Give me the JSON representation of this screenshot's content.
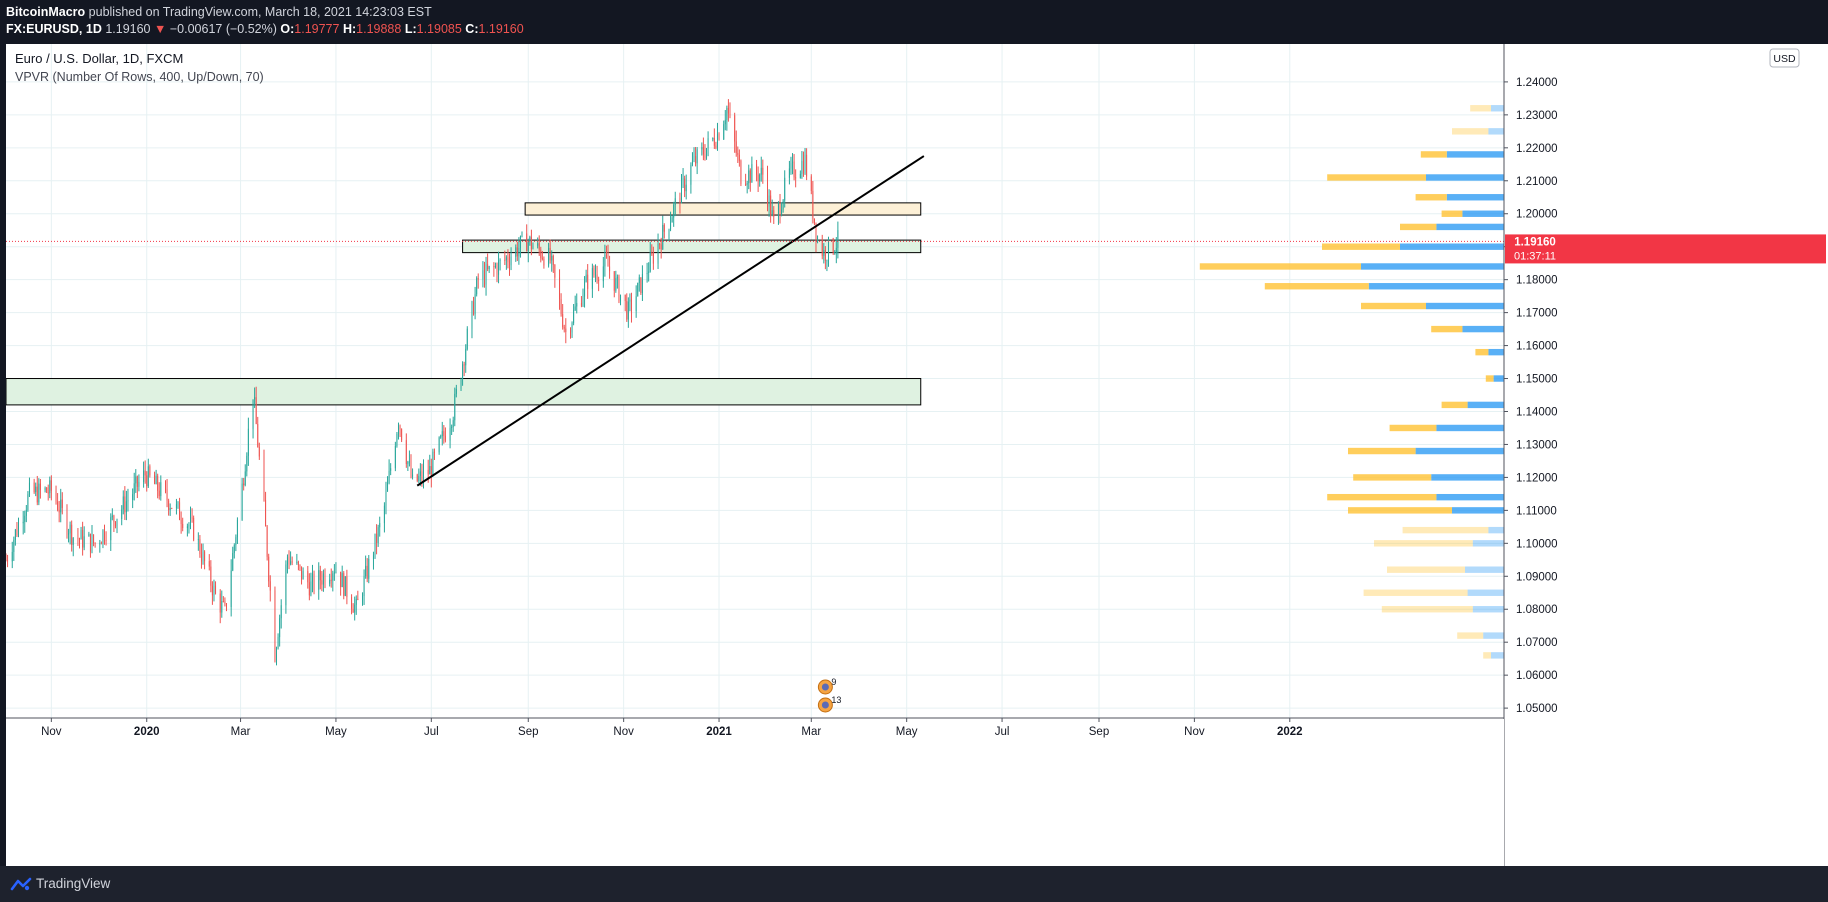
{
  "header": {
    "author": "BitcoinMacro",
    "published_text": " published on TradingView.com, March 18, 2021 14:23:03 EST",
    "symbol": "FX:EURUSD, 1D",
    "last": "1.19160",
    "change_arrow": "▼",
    "change": "−0.00617 (−0.52%)",
    "o_label": "O:",
    "o_value": "1.19777",
    "h_label": "H:",
    "h_value": "1.19888",
    "l_label": "L:",
    "l_value": "1.19085",
    "c_label": "C:",
    "c_value": "1.19160"
  },
  "legend": {
    "title": "Euro / U.S. Dollar, 1D, FXCM",
    "indicator": "VPVR (Number Of Rows, 400, Up/Down, 70)"
  },
  "currency_badge": "USD",
  "price_badge": {
    "price": "1.19160",
    "countdown": "01:37:11"
  },
  "footer": {
    "brand": "TradingView"
  },
  "marker_labels": [
    "9",
    "13"
  ],
  "colors": {
    "up": "#26a69a",
    "down": "#ef5350",
    "zone_green": "#dff2e1",
    "zone_yellow": "#fdf0d6",
    "vp_up": "#2196f3",
    "vp_down": "#ffc233",
    "last_price": "#f23645",
    "background": "#131722",
    "grid": "#e6f1f3"
  },
  "chart_data": {
    "type": "candlestick",
    "symbol": "FX:EURUSD",
    "timeframe": "1D",
    "y_ticks": [
      "1.05000",
      "1.06000",
      "1.07000",
      "1.08000",
      "1.09000",
      "1.10000",
      "1.11000",
      "1.12000",
      "1.13000",
      "1.14000",
      "1.15000",
      "1.16000",
      "1.17000",
      "1.18000",
      "1.19000",
      "1.20000",
      "1.21000",
      "1.22000",
      "1.23000",
      "1.24000"
    ],
    "y_range": [
      1.047,
      1.2515
    ],
    "x_ticks": [
      "Nov",
      "2020",
      "Mar",
      "May",
      "Jul",
      "Sep",
      "Nov",
      "2021",
      "Mar",
      "May",
      "Jul",
      "Sep",
      "Nov",
      "2022"
    ],
    "x_tick_dates": [
      "2019-11-01",
      "2020-01-01",
      "2020-03-01",
      "2020-05-01",
      "2020-07-01",
      "2020-09-01",
      "2020-11-01",
      "2021-01-01",
      "2021-03-01",
      "2021-05-01",
      "2021-07-01",
      "2021-09-01",
      "2021-11-01",
      "2022-01-01"
    ],
    "x_range": [
      "2019-10-03",
      "2022-05-18"
    ],
    "price_path": [
      [
        "2019-10-03",
        1.095
      ],
      [
        "2019-10-18",
        1.115
      ],
      [
        "2019-11-01",
        1.116
      ],
      [
        "2019-11-15",
        1.102
      ],
      [
        "2019-11-29",
        1.1
      ],
      [
        "2019-12-15",
        1.11
      ],
      [
        "2019-12-31",
        1.121
      ],
      [
        "2020-01-15",
        1.113
      ],
      [
        "2020-01-31",
        1.104
      ],
      [
        "2020-02-14",
        1.084
      ],
      [
        "2020-02-20",
        1.079
      ],
      [
        "2020-03-02",
        1.117
      ],
      [
        "2020-03-09",
        1.146
      ],
      [
        "2020-03-16",
        1.11
      ],
      [
        "2020-03-23",
        1.067
      ],
      [
        "2020-03-31",
        1.096
      ],
      [
        "2020-04-15",
        1.087
      ],
      [
        "2020-04-30",
        1.093
      ],
      [
        "2020-05-14",
        1.08
      ],
      [
        "2020-05-31",
        1.108
      ],
      [
        "2020-06-10",
        1.138
      ],
      [
        "2020-06-19",
        1.118
      ],
      [
        "2020-06-30",
        1.122
      ],
      [
        "2020-07-15",
        1.14
      ],
      [
        "2020-07-31",
        1.18
      ],
      [
        "2020-08-15",
        1.185
      ],
      [
        "2020-08-31",
        1.192
      ],
      [
        "2020-09-15",
        1.186
      ],
      [
        "2020-09-25",
        1.164
      ],
      [
        "2020-10-09",
        1.18
      ],
      [
        "2020-10-21",
        1.185
      ],
      [
        "2020-11-04",
        1.17
      ],
      [
        "2020-11-15",
        1.182
      ],
      [
        "2020-11-30",
        1.198
      ],
      [
        "2020-12-15",
        1.215
      ],
      [
        "2020-12-31",
        1.224
      ],
      [
        "2021-01-06",
        1.232
      ],
      [
        "2021-01-15",
        1.212
      ],
      [
        "2021-01-29",
        1.212
      ],
      [
        "2021-02-05",
        1.197
      ],
      [
        "2021-02-15",
        1.212
      ],
      [
        "2021-02-25",
        1.216
      ],
      [
        "2021-03-05",
        1.192
      ],
      [
        "2021-03-09",
        1.188
      ],
      [
        "2021-03-18",
        1.1916
      ]
    ],
    "zones": [
      {
        "from": "2019-10-03",
        "to": "2021-05-10",
        "low": 1.142,
        "high": 1.15,
        "color": "green"
      },
      {
        "from": "2020-07-21",
        "to": "2021-05-10",
        "low": 1.1882,
        "high": 1.192,
        "color": "green"
      },
      {
        "from": "2020-08-30",
        "to": "2021-05-10",
        "low": 1.1996,
        "high": 1.2033,
        "color": "yellow"
      }
    ],
    "trendline": [
      [
        "2020-06-22",
        1.1175
      ],
      [
        "2021-05-12",
        1.2175
      ]
    ],
    "last_price": 1.1916,
    "volume_profile": {
      "rows": 400,
      "mode": "Up/Down",
      "value_area": 70,
      "levels": [
        [
          1.066,
          0.05,
          0.03
        ],
        [
          1.072,
          0.08,
          0.1
        ],
        [
          1.08,
          0.12,
          0.35
        ],
        [
          1.085,
          0.14,
          0.4
        ],
        [
          1.092,
          0.15,
          0.3
        ],
        [
          1.1,
          0.12,
          0.38
        ],
        [
          1.104,
          0.06,
          0.33
        ],
        [
          1.11,
          0.2,
          0.4
        ],
        [
          1.114,
          0.26,
          0.42
        ],
        [
          1.12,
          0.28,
          0.3
        ],
        [
          1.128,
          0.34,
          0.26
        ],
        [
          1.135,
          0.26,
          0.18
        ],
        [
          1.142,
          0.14,
          0.1
        ],
        [
          1.15,
          0.04,
          0.03
        ],
        [
          1.158,
          0.06,
          0.05
        ],
        [
          1.165,
          0.16,
          0.12
        ],
        [
          1.172,
          0.3,
          0.25
        ],
        [
          1.178,
          0.52,
          0.4
        ],
        [
          1.184,
          0.55,
          0.62
        ],
        [
          1.19,
          0.4,
          0.3
        ],
        [
          1.196,
          0.26,
          0.14
        ],
        [
          1.2,
          0.16,
          0.08
        ],
        [
          1.205,
          0.22,
          0.12
        ],
        [
          1.211,
          0.3,
          0.38
        ],
        [
          1.218,
          0.22,
          0.1
        ],
        [
          1.225,
          0.06,
          0.14
        ],
        [
          1.232,
          0.05,
          0.08
        ]
      ]
    }
  }
}
